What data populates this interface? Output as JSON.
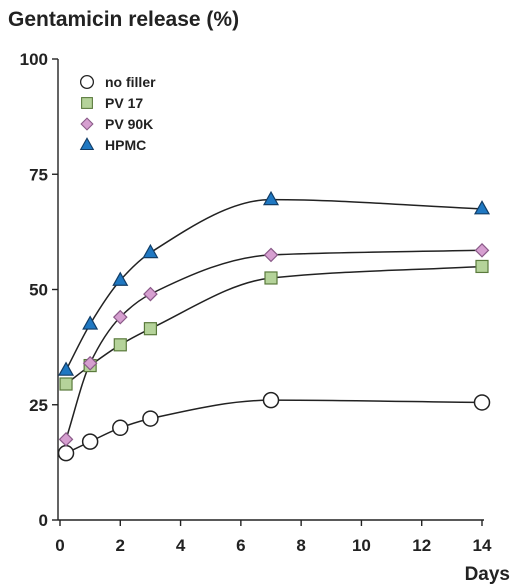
{
  "chart_data": {
    "type": "line",
    "ylabel": "Gentamicin release (%)",
    "xlabel": "Days",
    "xlim": [
      0,
      14
    ],
    "ylim": [
      0,
      100
    ],
    "xticks": [
      0,
      2,
      4,
      6,
      8,
      10,
      12,
      14
    ],
    "yticks": [
      0,
      25,
      50,
      75,
      100
    ],
    "grid": false,
    "legend_position": "top-left",
    "series": [
      {
        "name": "no filler",
        "marker": "circle",
        "color": "#ffffff",
        "x": [
          0.2,
          1,
          2,
          3,
          7,
          14
        ],
        "y": [
          14.5,
          17,
          20,
          22,
          26,
          25.5
        ]
      },
      {
        "name": "PV 17",
        "marker": "square",
        "color": "#b5d39a",
        "x": [
          0.2,
          1,
          2,
          3,
          7,
          14
        ],
        "y": [
          29.5,
          33.5,
          38,
          41.5,
          52.5,
          55
        ]
      },
      {
        "name": "PV 90K",
        "marker": "diamond",
        "color": "#d69fd0",
        "x": [
          0.2,
          1,
          2,
          3,
          7,
          14
        ],
        "y": [
          17.5,
          34,
          44,
          49,
          57.5,
          58.5
        ]
      },
      {
        "name": "HPMC",
        "marker": "triangle",
        "color": "#1f78c2",
        "x": [
          0.2,
          1,
          2,
          3,
          7,
          14
        ],
        "y": [
          32.5,
          42.5,
          52,
          58,
          69.5,
          67.5
        ]
      }
    ]
  }
}
